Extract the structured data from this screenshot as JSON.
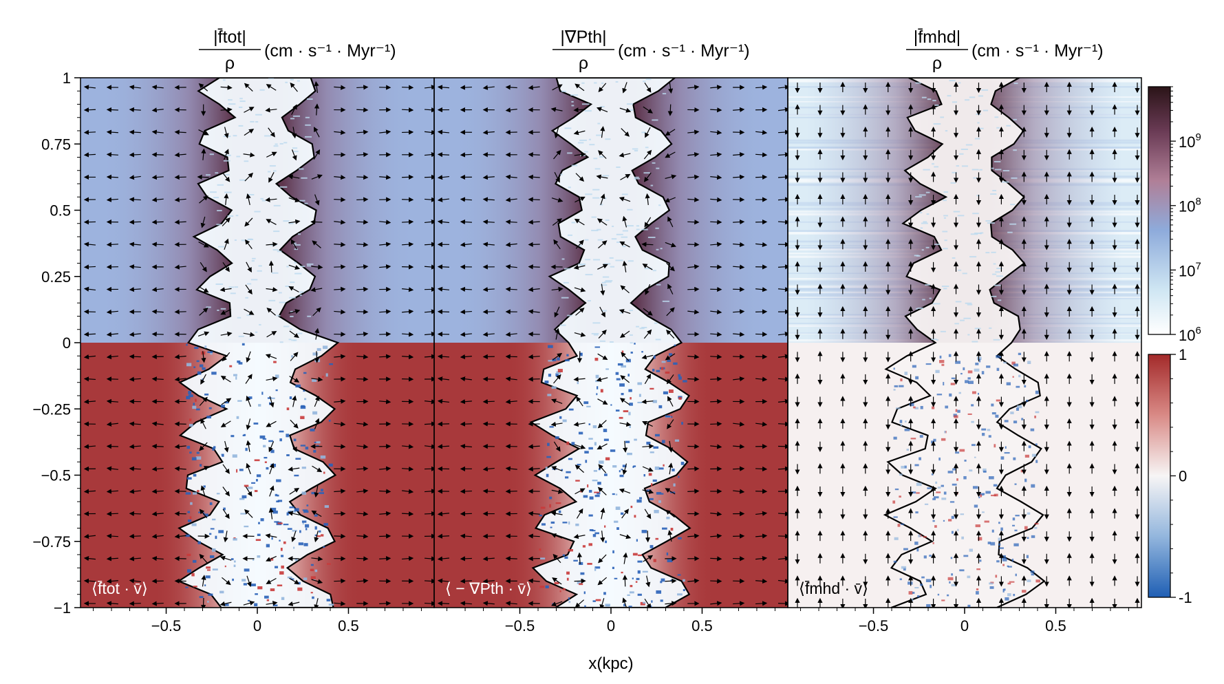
{
  "chart_data": {
    "type": "heatmap",
    "panels": [
      {
        "title_num": "|f̄tot|",
        "title_den": "ρ",
        "units": "(cm · s⁻¹ · Myr⁻¹)",
        "corner_label": "⟨f̄tot · v̄⟩",
        "vector_style": "radial"
      },
      {
        "title_num": "|∇Pth|",
        "title_den": "ρ",
        "units": "(cm · s⁻¹ · Myr⁻¹)",
        "corner_label": "⟨ − ∇Pth · v̄⟩",
        "vector_style": "radial"
      },
      {
        "title_num": "|f̄mhd|",
        "title_den": "ρ",
        "units": "(cm · s⁻¹ · Myr⁻¹)",
        "corner_label": "⟨f̄mhd · v̄⟩",
        "vector_style": "vertical"
      }
    ],
    "xlabel": "x(kpc)",
    "x_ticks": [
      "−0.5",
      "0",
      "0.5"
    ],
    "x_tick_values": [
      -0.5,
      0,
      0.5
    ],
    "xlim": [
      -0.97,
      0.97
    ],
    "ylim": [
      -1,
      1
    ],
    "y_ticks": [
      "1",
      "0.75",
      "0.5",
      "0.25",
      "0",
      "−0.25",
      "−0.5",
      "−0.75",
      "−1"
    ],
    "y_tick_values": [
      1,
      0.75,
      0.5,
      0.25,
      0,
      -0.25,
      -0.5,
      -0.75,
      -1
    ],
    "colorbar_top": {
      "scale": "log",
      "range": [
        1000000,
        7000000000
      ],
      "ticks": [
        {
          "base": "10",
          "exp": "6",
          "value": 1000000
        },
        {
          "base": "10",
          "exp": "7",
          "value": 10000000
        },
        {
          "base": "10",
          "exp": "8",
          "value": 100000000
        },
        {
          "base": "10",
          "exp": "9",
          "value": 1000000000
        }
      ],
      "colors": [
        "#ffffff",
        "#cfe6f3",
        "#8eabdb",
        "#b07f97",
        "#6a3b55",
        "#2b1418"
      ]
    },
    "colorbar_bottom": {
      "scale": "linear",
      "range": [
        -1,
        1
      ],
      "ticks": [
        {
          "label": "1",
          "value": 1
        },
        {
          "label": "0",
          "value": 0
        },
        {
          "label": "-1",
          "value": -1
        }
      ],
      "colors": [
        "#1f5fb4",
        "#ffffff",
        "#a32a2a"
      ]
    },
    "background_colors": {
      "top_outer": "#9db3de",
      "bottom_outer": "#a8393b",
      "mhd_top": "#dcecf6",
      "mhd_bottom": "#f6f0f0",
      "core": "#f4fbff",
      "halo": "#6b3f56"
    }
  }
}
